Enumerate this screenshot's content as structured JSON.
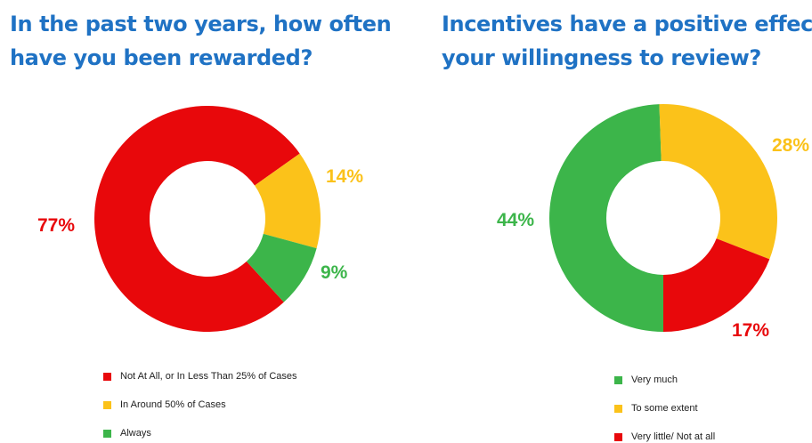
{
  "colors": {
    "red": "#e8080b",
    "yellow": "#fbc21a",
    "green": "#3cb54a",
    "title_blue": "#1f72c4"
  },
  "chart_data": [
    {
      "type": "pie",
      "title_lines": [
        "In the past two years, how often",
        "have you been rewarded?"
      ],
      "categories": [
        "Not At All, or In Less Than 25% of Cases",
        "In Around 50% of Cases",
        "Always"
      ],
      "values": [
        77,
        14,
        9
      ],
      "labels": [
        "77%",
        "14%",
        "9%"
      ],
      "colors": [
        "#e8080b",
        "#fbc21a",
        "#3cb54a"
      ],
      "legend_position": "bottom"
    },
    {
      "type": "pie",
      "title_lines": [
        "Incentives have a positive effect on",
        "your willingness to review?"
      ],
      "categories": [
        "Very much",
        "To some extent",
        "Very little/ Not at all"
      ],
      "values": [
        44,
        28,
        17
      ],
      "labels": [
        "44%",
        "28%",
        "17%"
      ],
      "colors": [
        "#3cb54a",
        "#fbc21a",
        "#e8080b"
      ],
      "legend_position": "bottom"
    }
  ]
}
